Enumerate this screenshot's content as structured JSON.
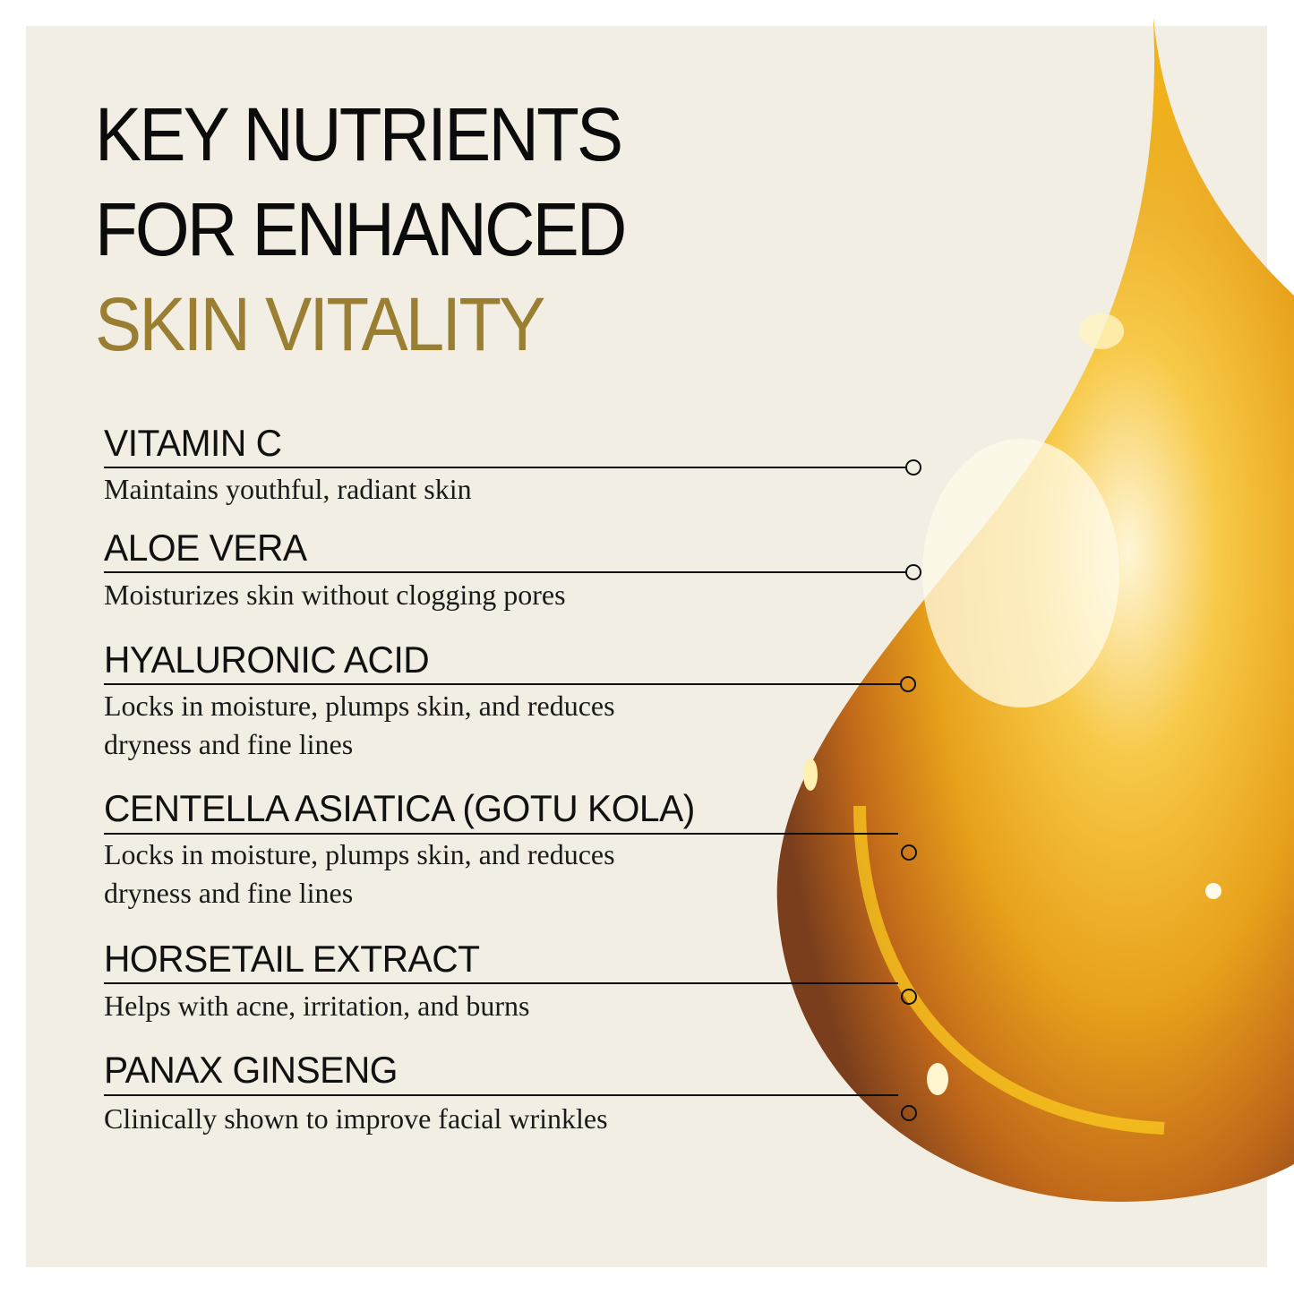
{
  "title": {
    "line1": "KEY NUTRIENTS",
    "line2": "FOR ENHANCED",
    "line3": "SKIN VITALITY"
  },
  "colors": {
    "background": "#f2eee3",
    "accent": "#9a7f33",
    "text": "#111111"
  },
  "illustration": "golden-oil-drop",
  "nutrients": [
    {
      "name": "VITAMIN C",
      "desc": [
        "Maintains youthful, radiant skin"
      ]
    },
    {
      "name": "ALOE VERA",
      "desc": [
        "Moisturizes skin without clogging pores"
      ]
    },
    {
      "name": "HYALURONIC ACID",
      "desc": [
        "Locks in moisture, plumps skin, and reduces",
        "dryness and fine lines"
      ]
    },
    {
      "name": "CENTELLA ASIATICA (GOTU KOLA)",
      "desc": [
        "Locks in moisture, plumps skin, and reduces",
        "dryness and fine lines"
      ]
    },
    {
      "name": "HORSETAIL EXTRACT",
      "desc": [
        "Helps with acne, irritation, and burns"
      ]
    },
    {
      "name": "PANAX GINSENG",
      "desc": [
        "Clinically shown to improve facial wrinkles"
      ]
    }
  ]
}
